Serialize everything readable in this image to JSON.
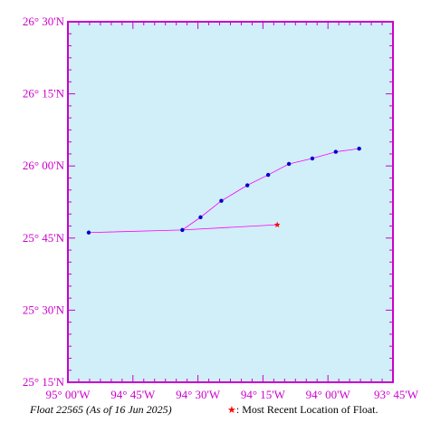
{
  "chart_data": {
    "type": "map-track",
    "lat_ticks": [
      "25° 15'N",
      "25° 30'N",
      "25° 45'N",
      "26° 00'N",
      "26° 15'N",
      "26° 30'N"
    ],
    "lon_ticks": [
      "95° 00'W",
      "94° 45'W",
      "94° 30'W",
      "94° 15'W",
      "94° 00'W",
      "93° 45'W"
    ],
    "lat_range": [
      25.25,
      26.5
    ],
    "lon_range": [
      -95.0,
      -93.75
    ],
    "track": [
      {
        "lon": -94.92,
        "lat": 25.769
      },
      {
        "lon": -94.56,
        "lat": 25.778
      },
      {
        "lon": -94.49,
        "lat": 25.822
      },
      {
        "lon": -94.41,
        "lat": 25.879
      },
      {
        "lon": -94.31,
        "lat": 25.933
      },
      {
        "lon": -94.23,
        "lat": 25.969
      },
      {
        "lon": -94.15,
        "lat": 26.007
      },
      {
        "lon": -94.06,
        "lat": 26.026
      },
      {
        "lon": -93.97,
        "lat": 26.049
      },
      {
        "lon": -93.88,
        "lat": 26.06
      }
    ],
    "recent_location": {
      "lon": -94.195,
      "lat": 25.796
    },
    "colors": {
      "ocean": "#d0eff8",
      "frame": "#cc00cc",
      "track_line": "#ff00ff",
      "track_point": "#0000cc",
      "recent_marker": "#ff0000"
    }
  },
  "caption": {
    "float_label": "Float 22565 (As of 16 Jun 2025)",
    "legend_star": "★",
    "legend_text": ": Most Recent Location of Float."
  }
}
